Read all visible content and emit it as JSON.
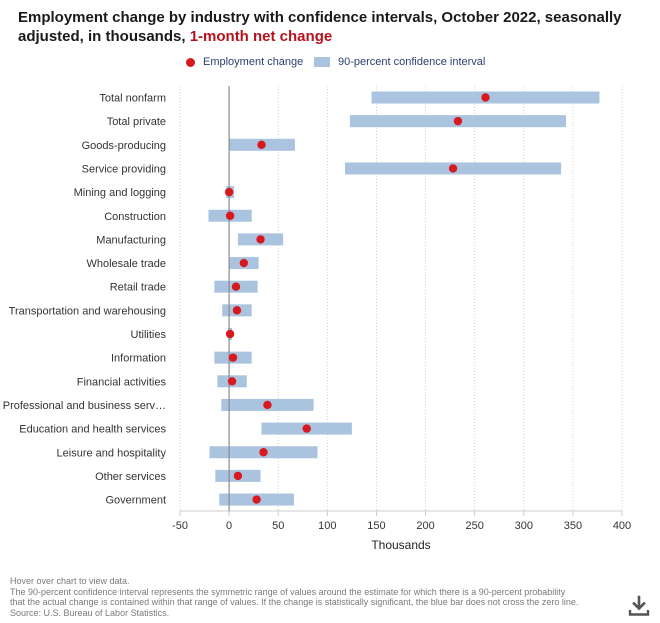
{
  "title": {
    "main": "Employment change by industry with confidence intervals, October 2022, seasonally adjusted, in thousands,",
    "highlight": "1-month net change"
  },
  "legend": {
    "point_label": "Employment change",
    "interval_label": "90-percent confidence interval"
  },
  "colors": {
    "point": "#d71920",
    "interval": "#aac4df",
    "zero_line": "#8a8a8a",
    "grid": "#cfcfcf"
  },
  "chart_data": {
    "type": "dot-with-interval",
    "xlabel": "Thousands",
    "xlim": [
      -50,
      400
    ],
    "xticks": [
      -50,
      0,
      50,
      100,
      150,
      200,
      250,
      300,
      350,
      400
    ],
    "grid": "vertical dotted",
    "categories": [
      "Total nonfarm",
      "Total private",
      "Goods-producing",
      "Service providing",
      "Mining and logging",
      "Construction",
      "Manufacturing",
      "Wholesale trade",
      "Retail trade",
      "Transportation and warehousing",
      "Utilities",
      "Information",
      "Financial activities",
      "Professional and business serv…",
      "Education and health services",
      "Leisure and hospitality",
      "Other services",
      "Government"
    ],
    "series": [
      {
        "name": "Employment change",
        "values": [
          261,
          233,
          33,
          228,
          0,
          1,
          32,
          15,
          7,
          8,
          1,
          4,
          3,
          39,
          79,
          35,
          9,
          28
        ]
      },
      {
        "name": "90-percent confidence interval",
        "lower": [
          145,
          123,
          0,
          118,
          -3,
          -21,
          9,
          0,
          -15,
          -7,
          -1,
          -15,
          -12,
          -8,
          33,
          -20,
          -14,
          -10
        ],
        "upper": [
          377,
          343,
          67,
          338,
          5,
          23,
          55,
          30,
          29,
          23,
          3,
          23,
          18,
          86,
          125,
          90,
          32,
          66
        ]
      }
    ]
  },
  "footnote": {
    "line1": "Hover over chart to view data.",
    "line2": "The 90-percent confidence interval represents the symmetric range of values around the estimate for which there is a 90-percent probability",
    "line3": "that the actual change is contained within that range of values. If the change is statistically significant, the blue bar does not cross the zero line.",
    "line4": "Source: U.S. Bureau of Labor Statistics."
  },
  "download_icon": "download-icon"
}
